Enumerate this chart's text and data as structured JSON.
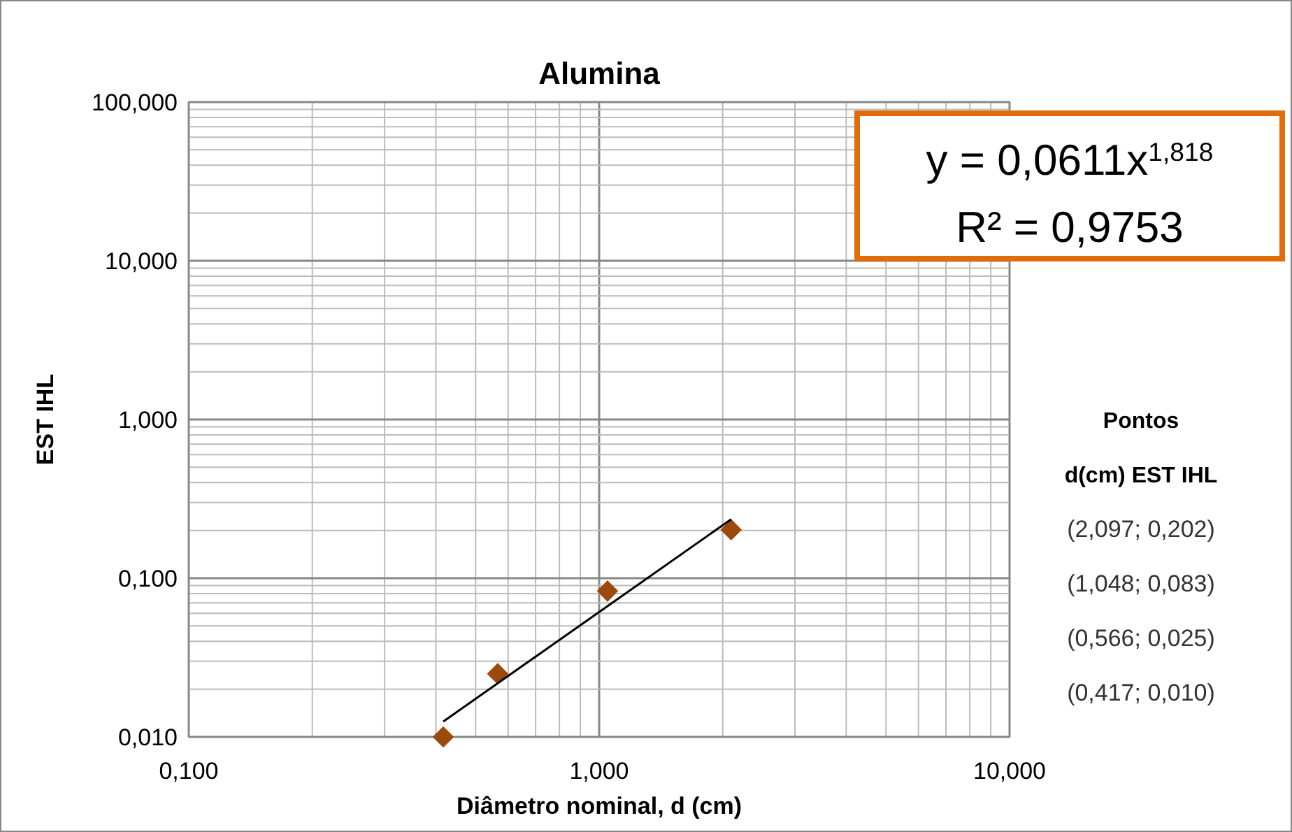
{
  "chart_data": {
    "type": "scatter",
    "title": "Alumina",
    "xlabel": "Diâmetro nominal, d (cm)",
    "ylabel": "EST IHL",
    "log": "xy",
    "grid": true,
    "marker": "diamond",
    "xlim": [
      0.1,
      10
    ],
    "xticks": [
      {
        "value": 0.1,
        "label": "0,100"
      },
      {
        "value": 1,
        "label": "1,000"
      },
      {
        "value": 10,
        "label": "10,000"
      }
    ],
    "ylim": [
      0.01,
      100
    ],
    "yticks": [
      {
        "value": 0.01,
        "label": "0,010"
      },
      {
        "value": 0.1,
        "label": "0,100"
      },
      {
        "value": 1,
        "label": "1,000"
      },
      {
        "value": 10,
        "label": "10,000"
      },
      {
        "value": 100,
        "label": "100,000"
      }
    ],
    "series": [
      {
        "color": "#9c4a0c",
        "x": [
          2.097,
          1.048,
          0.566,
          0.417
        ],
        "values": [
          0.202,
          0.083,
          0.025,
          0.01
        ]
      },
      {
        "type": "line",
        "color": "#000000",
        "marker": "none",
        "line_style": "solid",
        "x": [
          0.417,
          2.097
        ],
        "values": [
          0.0125,
          0.235
        ]
      }
    ],
    "annotations": [
      "y = 0,0611x$^{1,818}$",
      "R² = 0,9753",
      "Pontos",
      "d(cm) EST IHL",
      "(2,097; 0,202)",
      "(1,048; 0,083)",
      "(0,566; 0,025)",
      "(0,417; 0,010)"
    ]
  }
}
